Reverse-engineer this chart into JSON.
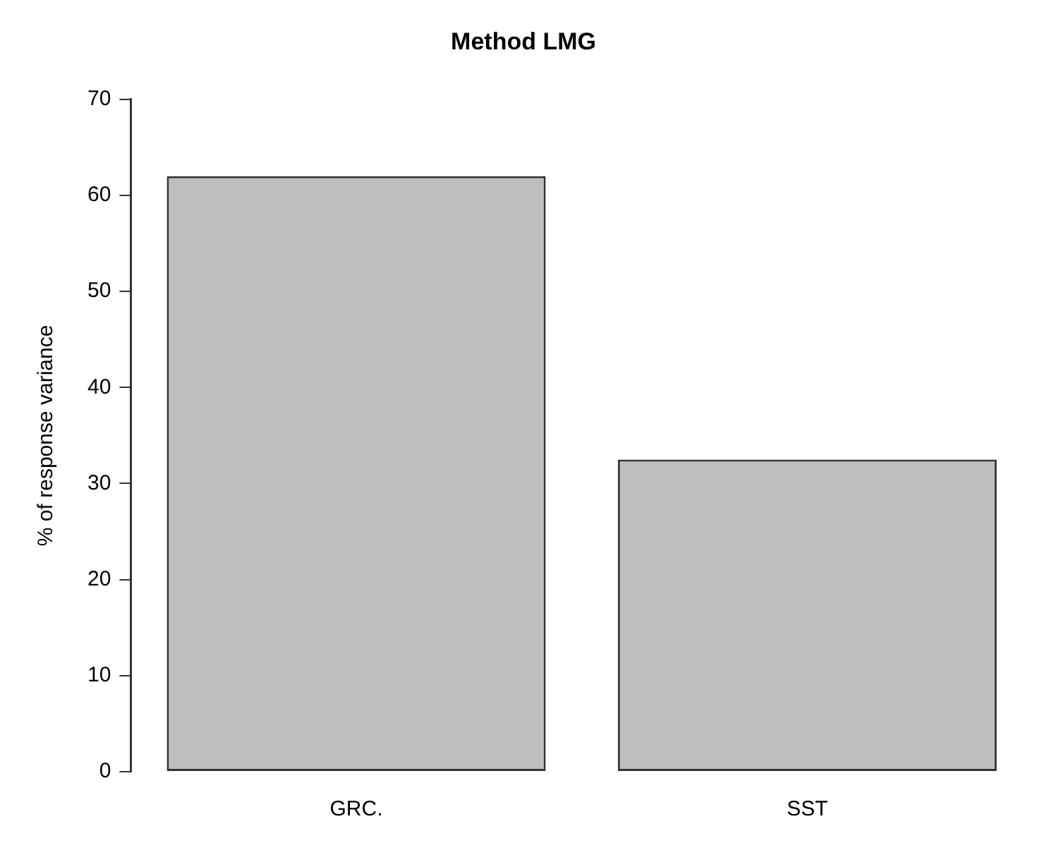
{
  "chart_data": {
    "type": "bar",
    "title": "Method LMG",
    "ylabel": "% of response variance",
    "categories": [
      "GRC.",
      "SST"
    ],
    "values": [
      62.0,
      32.5
    ],
    "color": "#bebebe",
    "ylim": [
      0,
      70
    ],
    "yticks": [
      0,
      10,
      20,
      30,
      40,
      50,
      60,
      70
    ],
    "grid": false,
    "legend": false
  }
}
